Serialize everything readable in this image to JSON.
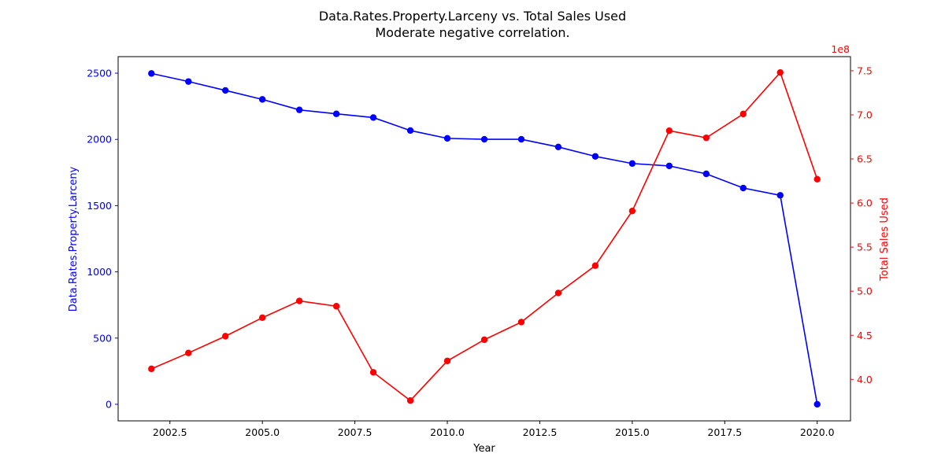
{
  "chart_data": {
    "type": "line",
    "title": "Data.Rates.Property.Larceny vs. Total Sales Used",
    "subtitle": "Moderate negative correlation.",
    "xlabel": "Year",
    "ylabel_left": "Data.Rates.Property.Larceny",
    "ylabel_right": "Total Sales Used",
    "right_axis_multiplier": "1e8",
    "xlim": [
      2001.1,
      2020.9
    ],
    "ylim_left": [
      -125,
      2625
    ],
    "ylim_right": [
      3.53,
      7.66
    ],
    "x_ticks": [
      2002.5,
      2005,
      2007.5,
      2010,
      2012.5,
      2015,
      2017.5,
      2020
    ],
    "x_tick_labels": [
      "2002.5",
      "2005.0",
      "2007.5",
      "2010.0",
      "2012.5",
      "2015.0",
      "2017.5",
      "2020.0"
    ],
    "y_ticks_left": [
      0,
      500,
      1000,
      1500,
      2000,
      2500
    ],
    "y_tick_labels_left": [
      "0",
      "500",
      "1000",
      "1500",
      "2000",
      "2500"
    ],
    "y_ticks_right": [
      4.0,
      4.5,
      5.0,
      5.5,
      6.0,
      6.5,
      7.0,
      7.5
    ],
    "y_tick_labels_right": [
      "4.0",
      "4.5",
      "5.0",
      "5.5",
      "6.0",
      "6.5",
      "7.0",
      "7.5"
    ],
    "grid": false,
    "x": [
      2002,
      2003,
      2004,
      2005,
      2006,
      2007,
      2008,
      2009,
      2010,
      2011,
      2012,
      2013,
      2014,
      2015,
      2016,
      2017,
      2018,
      2019,
      2020
    ],
    "series": [
      {
        "axis": "left",
        "color": "#0000ff",
        "values": [
          2498,
          2437,
          2370,
          2302,
          2223,
          2193,
          2165,
          2067,
          2008,
          2001,
          2001,
          1943,
          1872,
          1818,
          1800,
          1740,
          1633,
          1578,
          0
        ]
      },
      {
        "axis": "right",
        "color": "#ff0000",
        "values": [
          4.12,
          4.3,
          4.49,
          4.7,
          4.89,
          4.83,
          4.08,
          3.76,
          4.21,
          4.45,
          4.65,
          4.98,
          5.29,
          5.91,
          6.82,
          6.74,
          7.01,
          7.48,
          6.27
        ]
      }
    ]
  }
}
